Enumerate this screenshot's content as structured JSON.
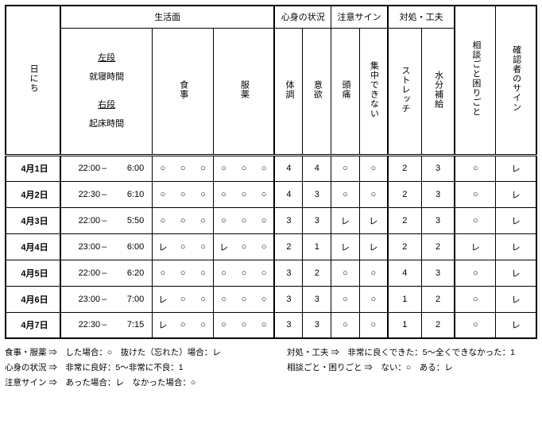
{
  "headers": {
    "date": "日にち",
    "life": "生活面",
    "life_left_top": "左段",
    "life_left_top2": "就寝時間",
    "life_left_bot": "右段",
    "life_left_bot2": "起床時間",
    "meal": "食事",
    "med": "服薬",
    "body": "心身の状況",
    "body_cols": [
      "体調",
      "意欲",
      "頭痛",
      "集中できない"
    ],
    "warn": "注意サイン",
    "cope": "対処・工夫",
    "cope_cols": [
      "ストレッチ",
      "水分補給"
    ],
    "consult": "相談ごと困りごと",
    "sign": "確認者のサイン"
  },
  "rows": [
    {
      "date": "4月1日",
      "bed": "22:00",
      "wake": "6:00",
      "meal": [
        "○",
        "○",
        "○"
      ],
      "med": [
        "○",
        "○",
        "○"
      ],
      "body": [
        "4",
        "4",
        "○",
        "○"
      ],
      "cope": [
        "2",
        "3"
      ],
      "consult": "○",
      "sign": "レ"
    },
    {
      "date": "4月2日",
      "bed": "22:30",
      "wake": "6:10",
      "meal": [
        "○",
        "○",
        "○"
      ],
      "med": [
        "○",
        "○",
        "○"
      ],
      "body": [
        "4",
        "3",
        "○",
        "○"
      ],
      "cope": [
        "2",
        "3"
      ],
      "consult": "○",
      "sign": "レ"
    },
    {
      "date": "4月3日",
      "bed": "22:00",
      "wake": "5:50",
      "meal": [
        "○",
        "○",
        "○"
      ],
      "med": [
        "○",
        "○",
        "○"
      ],
      "body": [
        "3",
        "3",
        "レ",
        "レ"
      ],
      "cope": [
        "2",
        "3"
      ],
      "consult": "○",
      "sign": "レ"
    },
    {
      "date": "4月4日",
      "bed": "23:00",
      "wake": "6:00",
      "meal": [
        "レ",
        "○",
        "○"
      ],
      "med": [
        "レ",
        "○",
        "○"
      ],
      "body": [
        "2",
        "1",
        "レ",
        "レ"
      ],
      "cope": [
        "2",
        "2"
      ],
      "consult": "レ",
      "sign": "レ"
    },
    {
      "date": "4月5日",
      "bed": "22:00",
      "wake": "6:20",
      "meal": [
        "○",
        "○",
        "○"
      ],
      "med": [
        "○",
        "○",
        "○"
      ],
      "body": [
        "3",
        "2",
        "○",
        "○"
      ],
      "cope": [
        "4",
        "3"
      ],
      "consult": "○",
      "sign": "レ"
    },
    {
      "date": "4月6日",
      "bed": "23:00",
      "wake": "7:00",
      "meal": [
        "レ",
        "○",
        "○"
      ],
      "med": [
        "○",
        "○",
        "○"
      ],
      "body": [
        "3",
        "3",
        "○",
        "○"
      ],
      "cope": [
        "1",
        "2"
      ],
      "consult": "○",
      "sign": "レ"
    },
    {
      "date": "4月7日",
      "bed": "22:30",
      "wake": "7:15",
      "meal": [
        "レ",
        "○",
        "○"
      ],
      "med": [
        "○",
        "○",
        "○"
      ],
      "body": [
        "3",
        "3",
        "○",
        "○"
      ],
      "cope": [
        "1",
        "2"
      ],
      "consult": "○",
      "sign": "レ"
    }
  ],
  "legend": {
    "l1": "食事・服薬 ⇒　した場合：○　抜けた（忘れた）場合：レ",
    "l2": "心身の状況 ⇒　非常に良好：5～非常に不良：1",
    "l3": "注意サイン ⇒　あった場合：レ　なかった場合：○",
    "r1": "対処・工夫 ⇒　非常に良くできた：5～全くできなかった：1",
    "r2": "相談ごと・困りごと ⇒　ない：○　ある：レ"
  }
}
